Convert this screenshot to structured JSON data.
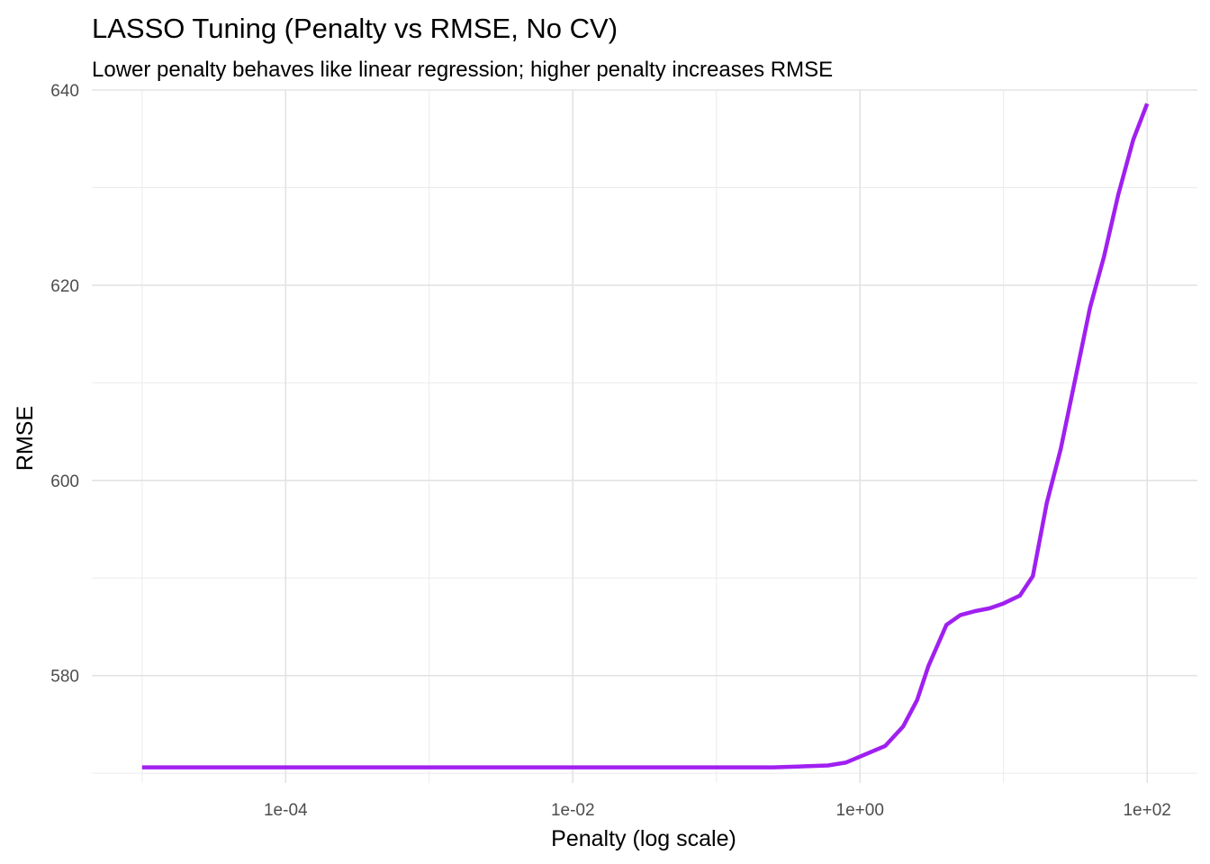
{
  "chart_data": {
    "type": "line",
    "title": "LASSO Tuning (Penalty vs RMSE, No CV)",
    "subtitle": "Lower penalty behaves like linear regression; higher penalty increases RMSE",
    "xlabel": "Penalty (log scale)",
    "ylabel": "RMSE",
    "x_scale": "log10",
    "xlim": [
      1e-05,
      100
    ],
    "ylim": [
      569,
      640
    ],
    "x_ticks": [
      {
        "value": 0.0001,
        "label": "1e-04"
      },
      {
        "value": 0.01,
        "label": "1e-02"
      },
      {
        "value": 1,
        "label": "1e+00"
      },
      {
        "value": 100,
        "label": "1e+02"
      }
    ],
    "y_ticks": [
      {
        "value": 580,
        "label": "580"
      },
      {
        "value": 600,
        "label": "600"
      },
      {
        "value": 620,
        "label": "620"
      },
      {
        "value": 640,
        "label": "640"
      }
    ],
    "grid": true,
    "line_color": "#A020F0",
    "series": [
      {
        "x": [
          1e-05,
          0.0001,
          0.001,
          0.01,
          0.1,
          0.25,
          0.4,
          0.6,
          0.8,
          1.0,
          1.5,
          2.0,
          2.5,
          3.0,
          4.0,
          5.0,
          6.3,
          8.0,
          10,
          13,
          16,
          20,
          25,
          32,
          40,
          50,
          63,
          80,
          100
        ],
        "y": [
          570.6,
          570.6,
          570.6,
          570.6,
          570.6,
          570.6,
          570.7,
          570.8,
          571.1,
          571.7,
          572.8,
          574.8,
          577.5,
          581.0,
          585.2,
          586.2,
          586.6,
          586.9,
          587.4,
          588.2,
          590.2,
          597.7,
          603.2,
          610.8,
          617.7,
          622.9,
          629.3,
          634.9,
          638.6
        ]
      }
    ]
  }
}
